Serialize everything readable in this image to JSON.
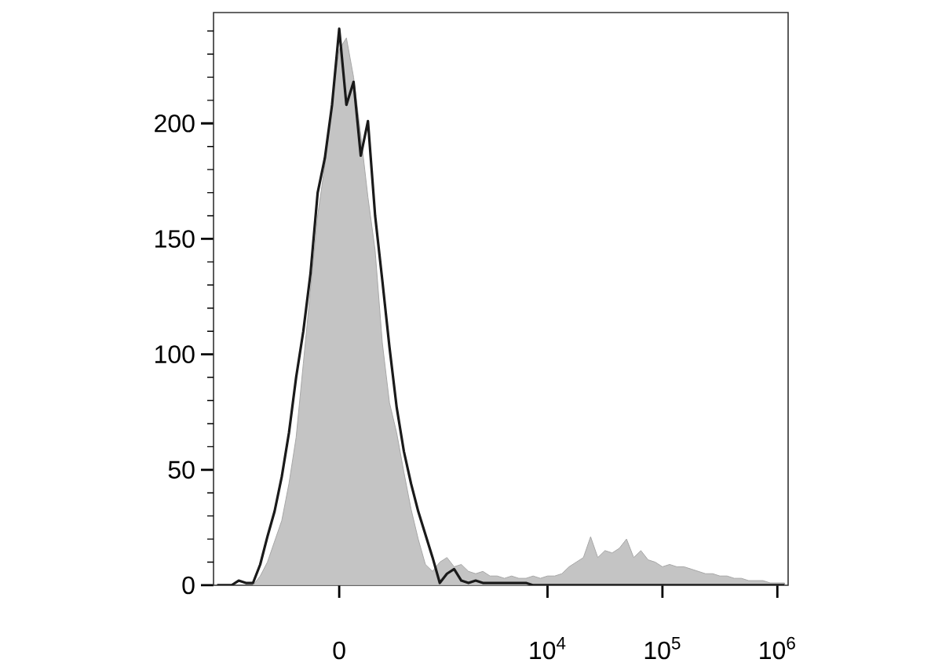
{
  "chart_data": {
    "type": "area",
    "ylim": [
      0,
      248
    ],
    "categories": [
      null,
      null,
      null,
      null,
      null,
      null,
      null,
      null,
      null,
      null,
      null,
      null,
      null,
      null,
      null,
      null,
      null,
      "0",
      null,
      null,
      null,
      null,
      null,
      null,
      null,
      null,
      null,
      null,
      null,
      null,
      null,
      null,
      null,
      null,
      null,
      null,
      null,
      null,
      null,
      null,
      null,
      null,
      null,
      null,
      null,
      null,
      "10$^{4}$",
      null,
      null,
      null,
      null,
      null,
      null,
      null,
      null,
      null,
      null,
      null,
      null,
      null,
      null,
      null,
      "10$^{5}$",
      null,
      null,
      null,
      null,
      null,
      null,
      null,
      null,
      null,
      null,
      null,
      null,
      null,
      null,
      null,
      "10$^{6}$",
      null
    ],
    "yticks": [
      0,
      {
        "value": 10,
        "label": null
      },
      {
        "value": 20,
        "label": null
      },
      {
        "value": 30,
        "label": null
      },
      {
        "value": 40,
        "label": null
      },
      50,
      {
        "value": 60,
        "label": null
      },
      {
        "value": 70,
        "label": null
      },
      {
        "value": 80,
        "label": null
      },
      {
        "value": 90,
        "label": null
      },
      100,
      {
        "value": 110,
        "label": null
      },
      {
        "value": 120,
        "label": null
      },
      {
        "value": 130,
        "label": null
      },
      {
        "value": 140,
        "label": null
      },
      150,
      {
        "value": 160,
        "label": null
      },
      {
        "value": 170,
        "label": null
      },
      {
        "value": 180,
        "label": null
      },
      {
        "value": 190,
        "label": null
      },
      200,
      {
        "value": 210,
        "label": null
      },
      {
        "value": 220,
        "label": null
      },
      {
        "value": 230,
        "label": null
      },
      {
        "value": 240,
        "label": null
      }
    ],
    "series": [
      {
        "color": "#c4c4c4",
        "values": [
          null,
          null,
          null,
          null,
          null,
          0,
          4,
          10,
          19,
          28,
          44,
          64,
          96,
          128,
          160,
          182,
          210,
          232,
          237,
          220,
          195,
          168,
          145,
          105,
          79,
          66,
          49,
          33,
          20,
          9,
          6,
          10,
          12,
          8,
          9,
          6,
          5,
          6,
          4,
          4,
          3,
          4,
          3,
          3,
          4,
          3,
          4,
          4,
          5,
          8,
          10,
          12,
          21,
          12,
          15,
          14,
          16,
          20,
          12,
          15,
          11,
          10,
          8,
          9,
          8,
          8,
          7,
          6,
          5,
          5,
          4,
          4,
          3,
          3,
          2,
          2,
          2,
          1,
          1,
          1
        ]
      },
      {
        "type": "line",
        "color": "#1a1a1a",
        "values": [
          0,
          0,
          0,
          2,
          1,
          1,
          9,
          21,
          32,
          47,
          66,
          90,
          110,
          135,
          170,
          185,
          208,
          241,
          208,
          218,
          186,
          201,
          160,
          132,
          103,
          77,
          58,
          44,
          32,
          22,
          12,
          1,
          5,
          7,
          2,
          1,
          2,
          1,
          1,
          1,
          1,
          1,
          1,
          1,
          0,
          0,
          0,
          0,
          0,
          0,
          0,
          0,
          0,
          0,
          0,
          0,
          0,
          0,
          0,
          0,
          0,
          0,
          0,
          0,
          0,
          0,
          0,
          0,
          0,
          0,
          0,
          0,
          0,
          0,
          0,
          0,
          0,
          0,
          0,
          0
        ]
      }
    ]
  }
}
